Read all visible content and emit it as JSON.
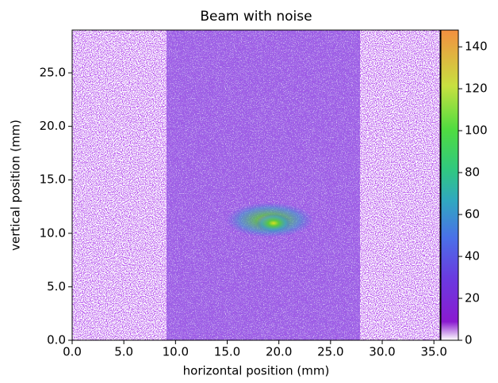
{
  "chart_data": {
    "type": "heatmap",
    "title": "Beam with noise",
    "xlabel": "horizontal position (mm)",
    "ylabel": "vertical position (mm)",
    "xlim": [
      0,
      35.6
    ],
    "ylim": [
      0,
      29
    ],
    "xticks": [
      {
        "value": 0,
        "label": "0.0"
      },
      {
        "value": 5,
        "label": "5.0"
      },
      {
        "value": 10,
        "label": "10.0"
      },
      {
        "value": 15,
        "label": "15.0"
      },
      {
        "value": 20,
        "label": "20.0"
      },
      {
        "value": 25,
        "label": "25.0"
      },
      {
        "value": 30,
        "label": "30.0"
      },
      {
        "value": 35,
        "label": "35.0"
      }
    ],
    "yticks": [
      {
        "value": 0,
        "label": "0.0"
      },
      {
        "value": 5,
        "label": "5.0"
      },
      {
        "value": 10,
        "label": "10.0"
      },
      {
        "value": 15,
        "label": "15.0"
      },
      {
        "value": 20,
        "label": "20.0"
      },
      {
        "value": 25,
        "label": "25.0"
      }
    ],
    "clim": [
      0,
      148
    ],
    "cticks": [
      0,
      20,
      40,
      60,
      80,
      100,
      120,
      140
    ]
  }
}
